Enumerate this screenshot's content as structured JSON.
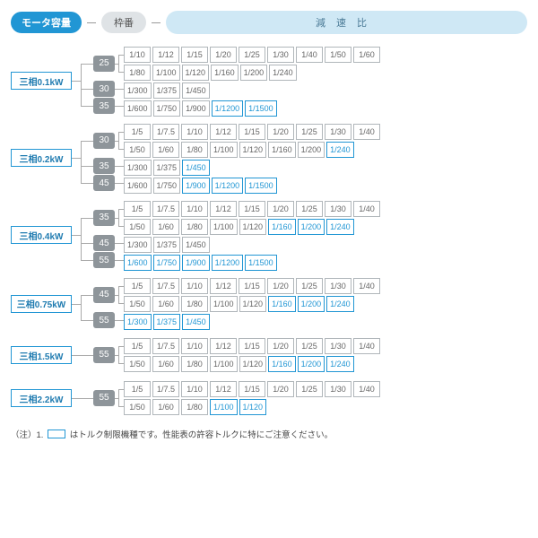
{
  "header": {
    "motor_capacity": "モータ容量",
    "wakuban": "枠番",
    "ratio": "減速比"
  },
  "colors": {
    "accent": "#2196d4",
    "accent_bg": "#cfe8f5",
    "gray_pill": "#8e959a",
    "border": "#b0b6ba"
  },
  "groups": [
    {
      "motor": "三相0.1kW",
      "frames": [
        {
          "num": "25",
          "rows": [
            [
              [
                "1/10",
                0
              ],
              [
                "1/12",
                0
              ],
              [
                "1/15",
                0
              ],
              [
                "1/20",
                0
              ],
              [
                "1/25",
                0
              ],
              [
                "1/30",
                0
              ],
              [
                "1/40",
                0
              ],
              [
                "1/50",
                0
              ],
              [
                "1/60",
                0
              ]
            ],
            [
              [
                "1/80",
                0
              ],
              [
                "1/100",
                0
              ],
              [
                "1/120",
                0
              ],
              [
                "1/160",
                0
              ],
              [
                "1/200",
                0
              ],
              [
                "1/240",
                0
              ]
            ]
          ]
        },
        {
          "num": "30",
          "rows": [
            [
              [
                "1/300",
                0
              ],
              [
                "1/375",
                0
              ],
              [
                "1/450",
                0
              ]
            ]
          ]
        },
        {
          "num": "35",
          "rows": [
            [
              [
                "1/600",
                0
              ],
              [
                "1/750",
                0
              ],
              [
                "1/900",
                0
              ],
              [
                "1/1200",
                1
              ],
              [
                "1/1500",
                1
              ]
            ]
          ]
        }
      ]
    },
    {
      "motor": "三相0.2kW",
      "frames": [
        {
          "num": "30",
          "rows": [
            [
              [
                "1/5",
                0
              ],
              [
                "1/7.5",
                0
              ],
              [
                "1/10",
                0
              ],
              [
                "1/12",
                0
              ],
              [
                "1/15",
                0
              ],
              [
                "1/20",
                0
              ],
              [
                "1/25",
                0
              ],
              [
                "1/30",
                0
              ],
              [
                "1/40",
                0
              ]
            ],
            [
              [
                "1/50",
                0
              ],
              [
                "1/60",
                0
              ],
              [
                "1/80",
                0
              ],
              [
                "1/100",
                0
              ],
              [
                "1/120",
                0
              ],
              [
                "1/160",
                0
              ],
              [
                "1/200",
                0
              ],
              [
                "1/240",
                1
              ]
            ]
          ]
        },
        {
          "num": "35",
          "rows": [
            [
              [
                "1/300",
                0
              ],
              [
                "1/375",
                0
              ],
              [
                "1/450",
                1
              ]
            ]
          ]
        },
        {
          "num": "45",
          "rows": [
            [
              [
                "1/600",
                0
              ],
              [
                "1/750",
                0
              ],
              [
                "1/900",
                1
              ],
              [
                "1/1200",
                1
              ],
              [
                "1/1500",
                1
              ]
            ]
          ]
        }
      ]
    },
    {
      "motor": "三相0.4kW",
      "frames": [
        {
          "num": "35",
          "rows": [
            [
              [
                "1/5",
                0
              ],
              [
                "1/7.5",
                0
              ],
              [
                "1/10",
                0
              ],
              [
                "1/12",
                0
              ],
              [
                "1/15",
                0
              ],
              [
                "1/20",
                0
              ],
              [
                "1/25",
                0
              ],
              [
                "1/30",
                0
              ],
              [
                "1/40",
                0
              ]
            ],
            [
              [
                "1/50",
                0
              ],
              [
                "1/60",
                0
              ],
              [
                "1/80",
                0
              ],
              [
                "1/100",
                0
              ],
              [
                "1/120",
                0
              ],
              [
                "1/160",
                1
              ],
              [
                "1/200",
                1
              ],
              [
                "1/240",
                1
              ]
            ]
          ]
        },
        {
          "num": "45",
          "rows": [
            [
              [
                "1/300",
                0
              ],
              [
                "1/375",
                0
              ],
              [
                "1/450",
                0
              ]
            ]
          ]
        },
        {
          "num": "55",
          "rows": [
            [
              [
                "1/600",
                1
              ],
              [
                "1/750",
                1
              ],
              [
                "1/900",
                1
              ],
              [
                "1/1200",
                1
              ],
              [
                "1/1500",
                1
              ]
            ]
          ]
        }
      ]
    },
    {
      "motor": "三相0.75kW",
      "frames": [
        {
          "num": "45",
          "rows": [
            [
              [
                "1/5",
                0
              ],
              [
                "1/7.5",
                0
              ],
              [
                "1/10",
                0
              ],
              [
                "1/12",
                0
              ],
              [
                "1/15",
                0
              ],
              [
                "1/20",
                0
              ],
              [
                "1/25",
                0
              ],
              [
                "1/30",
                0
              ],
              [
                "1/40",
                0
              ]
            ],
            [
              [
                "1/50",
                0
              ],
              [
                "1/60",
                0
              ],
              [
                "1/80",
                0
              ],
              [
                "1/100",
                0
              ],
              [
                "1/120",
                0
              ],
              [
                "1/160",
                1
              ],
              [
                "1/200",
                1
              ],
              [
                "1/240",
                1
              ]
            ]
          ]
        },
        {
          "num": "55",
          "rows": [
            [
              [
                "1/300",
                1
              ],
              [
                "1/375",
                1
              ],
              [
                "1/450",
                1
              ]
            ]
          ]
        }
      ]
    },
    {
      "motor": "三相1.5kW",
      "frames": [
        {
          "num": "55",
          "rows": [
            [
              [
                "1/5",
                0
              ],
              [
                "1/7.5",
                0
              ],
              [
                "1/10",
                0
              ],
              [
                "1/12",
                0
              ],
              [
                "1/15",
                0
              ],
              [
                "1/20",
                0
              ],
              [
                "1/25",
                0
              ],
              [
                "1/30",
                0
              ],
              [
                "1/40",
                0
              ]
            ],
            [
              [
                "1/50",
                0
              ],
              [
                "1/60",
                0
              ],
              [
                "1/80",
                0
              ],
              [
                "1/100",
                0
              ],
              [
                "1/120",
                0
              ],
              [
                "1/160",
                1
              ],
              [
                "1/200",
                1
              ],
              [
                "1/240",
                1
              ]
            ]
          ]
        }
      ]
    },
    {
      "motor": "三相2.2kW",
      "frames": [
        {
          "num": "55",
          "rows": [
            [
              [
                "1/5",
                0
              ],
              [
                "1/7.5",
                0
              ],
              [
                "1/10",
                0
              ],
              [
                "1/12",
                0
              ],
              [
                "1/15",
                0
              ],
              [
                "1/20",
                0
              ],
              [
                "1/25",
                0
              ],
              [
                "1/30",
                0
              ],
              [
                "1/40",
                0
              ]
            ],
            [
              [
                "1/50",
                0
              ],
              [
                "1/60",
                0
              ],
              [
                "1/80",
                0
              ],
              [
                "1/100",
                1
              ],
              [
                "1/120",
                1
              ]
            ]
          ]
        }
      ]
    }
  ],
  "note": {
    "prefix": "（注）1.",
    "text": "はトルク制限機種です。性能表の許容トルクに特にご注意ください。"
  }
}
